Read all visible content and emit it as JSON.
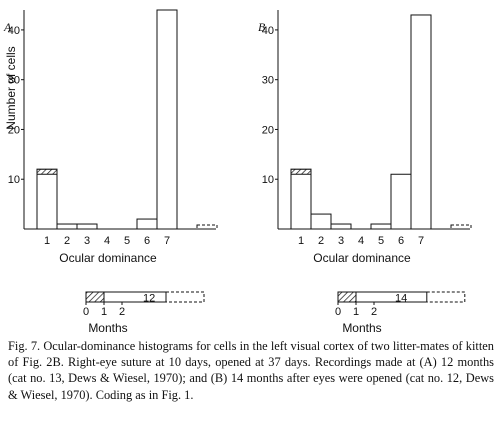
{
  "chart_data": [
    {
      "type": "bar",
      "panel_label": "A",
      "title": "",
      "xlabel": "Ocular dominance",
      "ylabel": "Number of cells",
      "categories": [
        "1",
        "2",
        "3",
        "4",
        "5",
        "6",
        "7"
      ],
      "values": [
        12,
        1,
        1,
        0,
        0,
        2,
        44
      ],
      "hatched_values": [
        1,
        0,
        0,
        0,
        0,
        0,
        0
      ],
      "extra_dashed_bin": true,
      "ylim": [
        0,
        44
      ],
      "yticks": [
        "10",
        "20",
        "30",
        "40"
      ],
      "timeline": {
        "tick_labels": [
          "0",
          "1",
          "2"
        ],
        "xlabel": "Months",
        "hatched_months": [
          0,
          1
        ],
        "bar_label": "12",
        "solid_end_month": 12
      }
    },
    {
      "type": "bar",
      "panel_label": "B",
      "title": "",
      "xlabel": "Ocular dominance",
      "ylabel": "",
      "categories": [
        "1",
        "2",
        "3",
        "4",
        "5",
        "6",
        "7"
      ],
      "values": [
        12,
        3,
        1,
        0,
        1,
        11,
        43
      ],
      "hatched_values": [
        1,
        0,
        0,
        0,
        0,
        0,
        0
      ],
      "extra_dashed_bin": true,
      "ylim": [
        0,
        44
      ],
      "yticks": [
        "10",
        "20",
        "30",
        "40"
      ],
      "timeline": {
        "tick_labels": [
          "0",
          "1",
          "2"
        ],
        "xlabel": "Months",
        "hatched_months": [
          0,
          1
        ],
        "bar_label": "14",
        "solid_end_month": 14
      }
    }
  ],
  "caption": "Fig. 7. Ocular-dominance histograms for cells in the left visual cortex of two litter-mates of kitten of Fig. 2B. Right-eye suture at 10 days, opened at 37 days. Recordings made at (A) 12 months (cat no. 13, Dews & Wiesel, 1970); and (B) 14 months after eyes were opened (cat no. 12, Dews & Wiesel, 1970). Coding as in Fig. 1."
}
